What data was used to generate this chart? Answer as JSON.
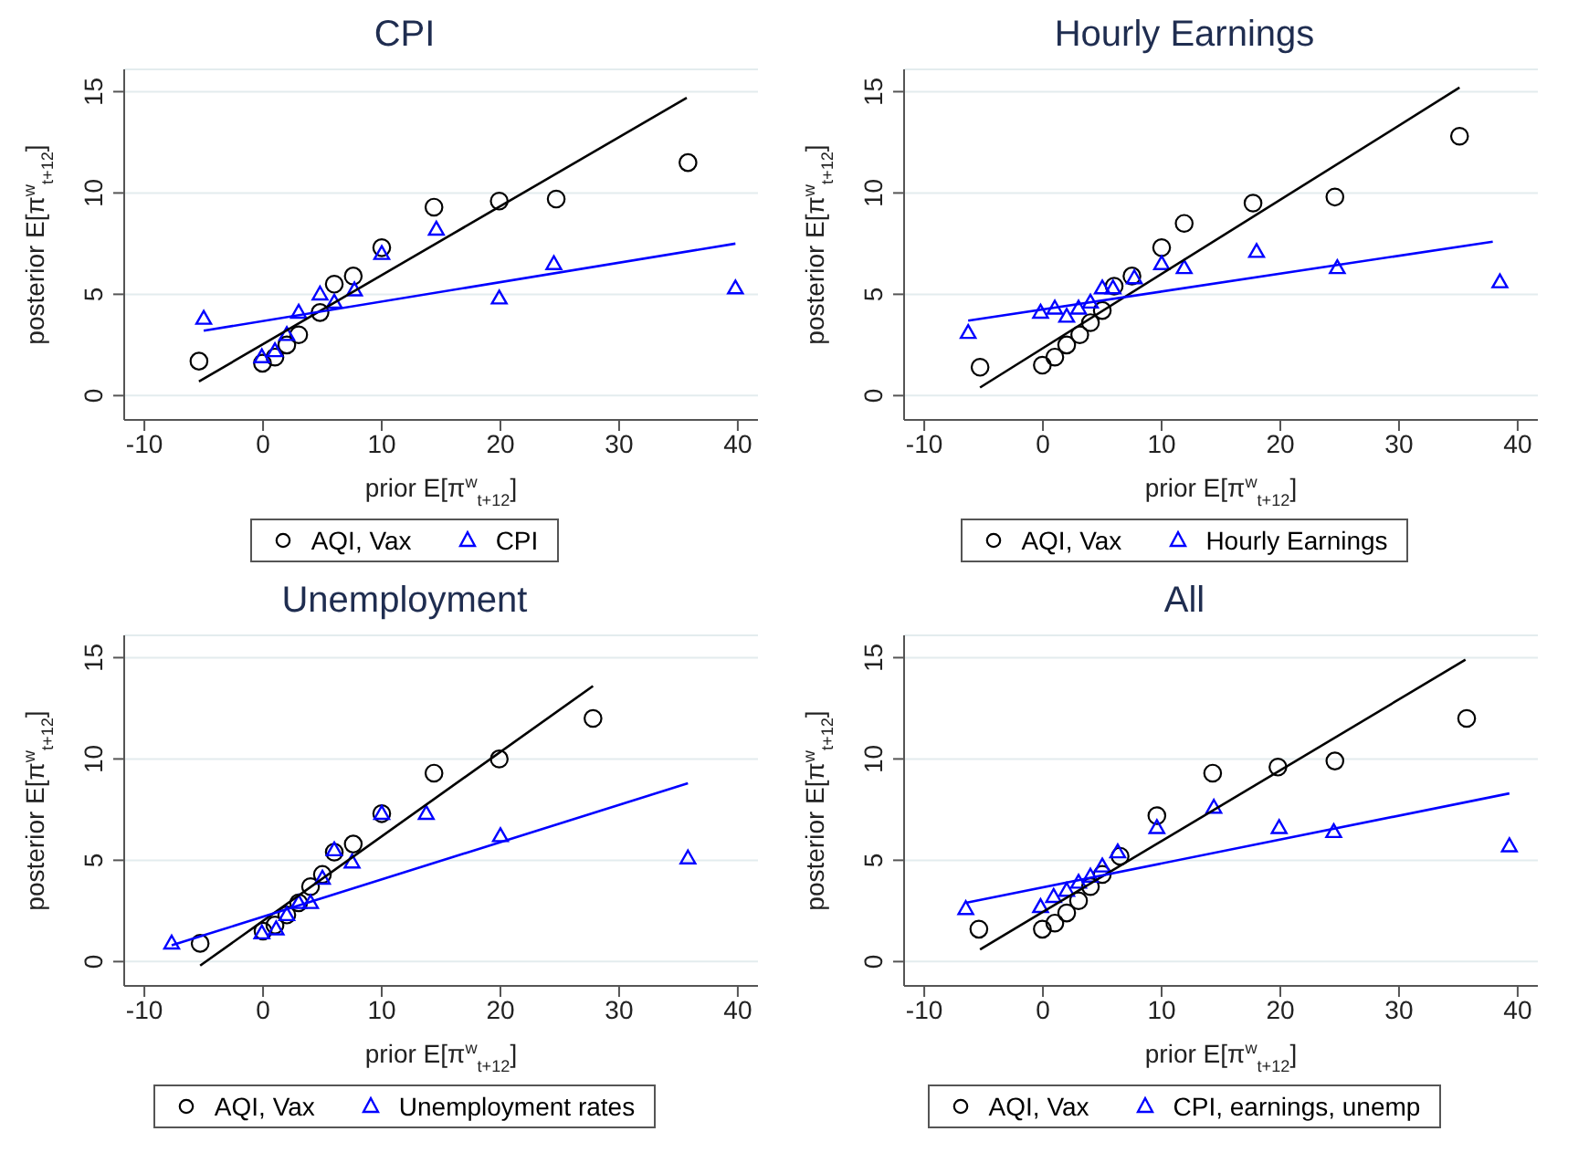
{
  "chart_data": [
    {
      "type": "scatter",
      "title": "CPI",
      "xlabel": "prior E[π$^{w}$$_{t+12}$]",
      "ylabel": "posterior E[π$^{w}$$_{t+12}$]",
      "xlim": [
        -11.7,
        41.7
      ],
      "ylim": [
        -1.2,
        16.1
      ],
      "xticks": [
        -10,
        0,
        10,
        20,
        30,
        40
      ],
      "yticks": [
        0,
        5,
        10,
        15
      ],
      "grid": "y",
      "legend": "bottom",
      "series": [
        {
          "name": "AQI, Vax",
          "color": "#000000",
          "marker": "circle",
          "x": [
            -5.4,
            -0.05,
            1.0,
            2.0,
            3.0,
            4.8,
            6.0,
            7.6,
            10.0,
            14.4,
            19.9,
            24.7,
            35.8
          ],
          "values": [
            1.7,
            1.6,
            1.9,
            2.5,
            3.0,
            4.1,
            5.5,
            5.9,
            7.3,
            9.3,
            9.6,
            9.7,
            11.5
          ]
        },
        {
          "name": "CPI",
          "color": "#0000ff",
          "marker": "triangle",
          "x": [
            -5.0,
            -0.1,
            1.0,
            2.0,
            3.0,
            4.8,
            6.0,
            7.7,
            10.0,
            14.6,
            19.9,
            24.5,
            39.8
          ],
          "values": [
            3.8,
            1.9,
            2.2,
            3.0,
            4.1,
            5.0,
            4.6,
            5.2,
            7.0,
            8.2,
            4.8,
            6.5,
            5.3
          ]
        },
        {
          "type": "line",
          "color": "#000000",
          "x": [
            -5.4,
            35.7
          ],
          "values": [
            0.7,
            14.7
          ]
        },
        {
          "type": "line",
          "color": "#0000ff",
          "x": [
            -5.0,
            39.8
          ],
          "values": [
            3.2,
            7.5
          ]
        }
      ]
    },
    {
      "type": "scatter",
      "title": "Hourly Earnings",
      "xlabel": "prior E[π$^{w}$$_{t+12}$]",
      "ylabel": "posterior E[π$^{w}$$_{t+12}$]",
      "xlim": [
        -11.7,
        41.7
      ],
      "ylim": [
        -1.2,
        16.1
      ],
      "xticks": [
        -10,
        0,
        10,
        20,
        30,
        40
      ],
      "yticks": [
        0,
        5,
        10,
        15
      ],
      "grid": "y",
      "legend": "bottom",
      "series": [
        {
          "name": "AQI, Vax",
          "color": "#000000",
          "marker": "circle",
          "x": [
            -5.3,
            -0.05,
            1.0,
            2.0,
            3.1,
            4.0,
            5.0,
            6.0,
            7.5,
            10.0,
            11.9,
            17.7,
            24.6,
            35.1
          ],
          "values": [
            1.4,
            1.5,
            1.9,
            2.5,
            3.0,
            3.6,
            4.2,
            5.4,
            5.9,
            7.3,
            8.5,
            9.5,
            9.8,
            12.8
          ]
        },
        {
          "name": "Hourly Earnings",
          "color": "#0000ff",
          "marker": "triangle",
          "x": [
            -6.3,
            -0.2,
            1.0,
            2.0,
            3.0,
            4.0,
            5.0,
            5.9,
            7.7,
            10.0,
            11.9,
            18.0,
            24.8,
            38.5
          ],
          "values": [
            3.1,
            4.1,
            4.3,
            3.9,
            4.3,
            4.6,
            5.3,
            5.3,
            5.8,
            6.5,
            6.3,
            7.1,
            6.3,
            5.6
          ]
        },
        {
          "type": "line",
          "color": "#000000",
          "x": [
            -5.3,
            35.1
          ],
          "values": [
            0.4,
            15.2
          ]
        },
        {
          "type": "line",
          "color": "#0000ff",
          "x": [
            -6.3,
            37.9
          ],
          "values": [
            3.7,
            7.6
          ]
        }
      ]
    },
    {
      "type": "scatter",
      "title": "Unemployment",
      "xlabel": "prior E[π$^{w}$$_{t+12}$]",
      "ylabel": "posterior E[π$^{w}$$_{t+12}$]",
      "xlim": [
        -11.7,
        41.7
      ],
      "ylim": [
        -1.2,
        16.1
      ],
      "xticks": [
        -10,
        0,
        10,
        20,
        30,
        40
      ],
      "yticks": [
        0,
        5,
        10,
        15
      ],
      "grid": "y",
      "legend": "bottom",
      "series": [
        {
          "name": "AQI, Vax",
          "color": "#000000",
          "marker": "circle",
          "x": [
            -5.3,
            0,
            1.0,
            2.0,
            3.0,
            4.0,
            5.0,
            6.0,
            7.6,
            10.0,
            14.4,
            19.9,
            27.8
          ],
          "values": [
            0.9,
            1.5,
            1.8,
            2.3,
            2.9,
            3.7,
            4.3,
            5.4,
            5.8,
            7.3,
            9.3,
            10.0,
            12.0
          ]
        },
        {
          "name": "Unemployment rates",
          "color": "#0000ff",
          "marker": "triangle",
          "x": [
            -7.7,
            -0.1,
            1.1,
            2.0,
            3.0,
            4.0,
            5.0,
            6.0,
            7.5,
            10.0,
            13.75,
            20.0,
            35.8
          ],
          "values": [
            0.9,
            1.4,
            1.6,
            2.3,
            2.9,
            2.9,
            4.1,
            5.5,
            4.9,
            7.3,
            7.3,
            6.2,
            5.1
          ]
        },
        {
          "type": "line",
          "color": "#000000",
          "x": [
            -5.3,
            27.8
          ],
          "values": [
            -0.2,
            13.6
          ]
        },
        {
          "type": "line",
          "color": "#0000ff",
          "x": [
            -7.7,
            35.8
          ],
          "values": [
            0.8,
            8.8
          ]
        }
      ]
    },
    {
      "type": "scatter",
      "title": "All",
      "xlabel": "prior E[π$^{w}$$_{t+12}$]",
      "ylabel": "posterior E[π$^{w}$$_{t+12}$]",
      "xlim": [
        -11.7,
        41.7
      ],
      "ylim": [
        -1.2,
        16.1
      ],
      "xticks": [
        -10,
        0,
        10,
        20,
        30,
        40
      ],
      "yticks": [
        0,
        5,
        10,
        15
      ],
      "grid": "y",
      "legend": "bottom",
      "series": [
        {
          "name": "AQI, Vax",
          "color": "#000000",
          "marker": "circle",
          "x": [
            -5.4,
            -0.05,
            1.0,
            2.0,
            3.0,
            4.0,
            5.0,
            6.5,
            9.6,
            14.3,
            19.8,
            24.6,
            35.7
          ],
          "values": [
            1.6,
            1.6,
            1.9,
            2.4,
            3.0,
            3.7,
            4.3,
            5.2,
            7.2,
            9.3,
            9.6,
            9.9,
            12.0
          ]
        },
        {
          "name": "CPI, earnings, unemp",
          "color": "#0000ff",
          "marker": "triangle",
          "x": [
            -6.5,
            -0.2,
            0.9,
            2.0,
            3.0,
            4.0,
            5.0,
            6.3,
            9.6,
            14.4,
            19.9,
            24.5,
            39.3
          ],
          "values": [
            2.6,
            2.7,
            3.2,
            3.5,
            3.9,
            4.2,
            4.7,
            5.4,
            6.6,
            7.6,
            6.6,
            6.4,
            5.7
          ]
        },
        {
          "type": "line",
          "color": "#000000",
          "x": [
            -5.3,
            35.6
          ],
          "values": [
            0.6,
            14.9
          ]
        },
        {
          "type": "line",
          "color": "#0000ff",
          "x": [
            -6.5,
            39.3
          ],
          "values": [
            2.9,
            8.3
          ]
        }
      ]
    }
  ]
}
